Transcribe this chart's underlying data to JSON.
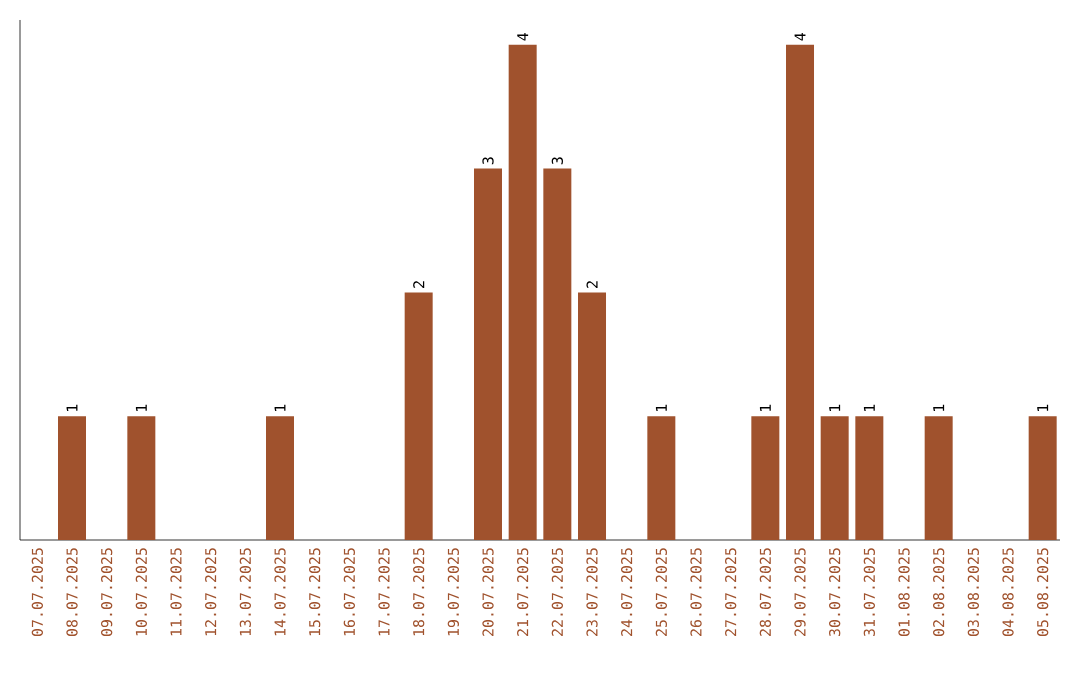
{
  "chart_data": {
    "type": "bar",
    "categories": [
      "07.07.2025",
      "08.07.2025",
      "09.07.2025",
      "10.07.2025",
      "11.07.2025",
      "12.07.2025",
      "13.07.2025",
      "14.07.2025",
      "15.07.2025",
      "16.07.2025",
      "17.07.2025",
      "18.07.2025",
      "19.07.2025",
      "20.07.2025",
      "21.07.2025",
      "22.07.2025",
      "23.07.2025",
      "24.07.2025",
      "25.07.2025",
      "26.07.2025",
      "27.07.2025",
      "28.07.2025",
      "29.07.2025",
      "30.07.2025",
      "31.07.2025",
      "01.08.2025",
      "02.08.2025",
      "03.08.2025",
      "04.08.2025",
      "05.08.2025"
    ],
    "values": [
      0,
      1,
      0,
      1,
      0,
      0,
      0,
      1,
      0,
      0,
      0,
      2,
      0,
      3,
      4,
      3,
      2,
      0,
      1,
      0,
      0,
      1,
      4,
      1,
      1,
      0,
      1,
      0,
      0,
      1
    ],
    "value_labels": [
      null,
      "1",
      null,
      "1",
      null,
      null,
      null,
      "1",
      null,
      null,
      null,
      "2",
      null,
      "3",
      "4",
      "3",
      "2",
      null,
      "1",
      null,
      null,
      "1",
      "4",
      "1",
      "1",
      null,
      "1",
      null,
      null,
      "1"
    ],
    "color": "#a0522d",
    "ylim": [
      0,
      4.2
    ]
  }
}
